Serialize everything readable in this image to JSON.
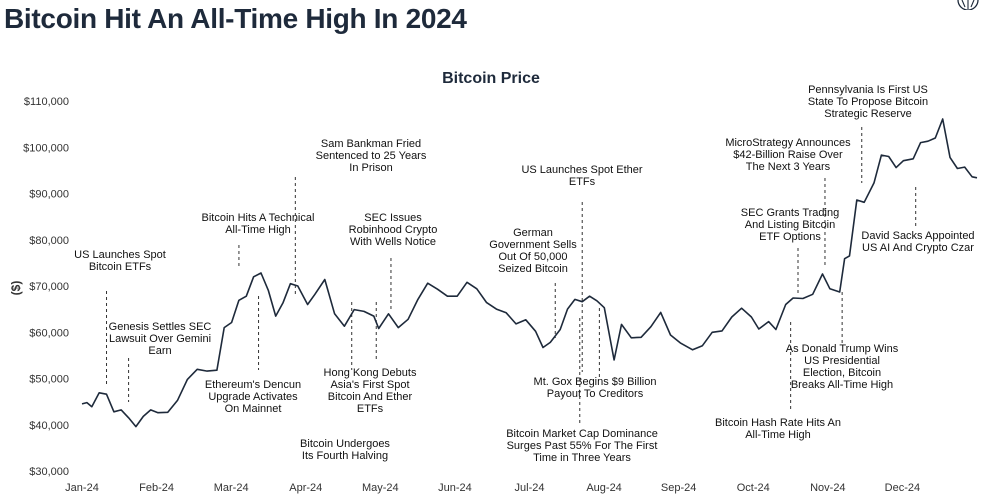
{
  "headline": "Bitcoin Hit An All-Time High In 2024",
  "chart_data": {
    "type": "line",
    "title": "Bitcoin Price",
    "xlabel": "",
    "ylabel": "($)",
    "ylim": [
      30000,
      110000
    ],
    "yticks": [
      30000,
      40000,
      50000,
      60000,
      70000,
      80000,
      90000,
      100000,
      110000
    ],
    "ytick_labels": [
      "$30,000",
      "$40,000",
      "$50,000",
      "$60,000",
      "$70,000",
      "$80,000",
      "$90,000",
      "$100,000",
      "$110,000"
    ],
    "xtick_labels": [
      "Jan-24",
      "Feb-24",
      "Mar-24",
      "Apr-24",
      "May-24",
      "Jun-24",
      "Jul-24",
      "Aug-24",
      "Sep-24",
      "Oct-24",
      "Nov-24",
      "Dec-24"
    ],
    "grid": false,
    "line_color": "#1e2a3b",
    "series": [
      {
        "x": [
          "2024-01-01",
          "2024-01-03",
          "2024-01-05",
          "2024-01-08",
          "2024-01-11",
          "2024-01-14",
          "2024-01-17",
          "2024-01-20",
          "2024-01-23",
          "2024-01-26",
          "2024-01-29",
          "2024-02-01",
          "2024-02-05",
          "2024-02-09",
          "2024-02-13",
          "2024-02-17",
          "2024-02-21",
          "2024-02-25",
          "2024-02-28",
          "2024-03-02",
          "2024-03-05",
          "2024-03-08",
          "2024-03-11",
          "2024-03-14",
          "2024-03-17",
          "2024-03-20",
          "2024-03-23",
          "2024-03-26",
          "2024-03-29",
          "2024-04-02",
          "2024-04-05",
          "2024-04-09",
          "2024-04-13",
          "2024-04-17",
          "2024-04-21",
          "2024-04-25",
          "2024-04-29",
          "2024-05-01",
          "2024-05-05",
          "2024-05-09",
          "2024-05-13",
          "2024-05-17",
          "2024-05-21",
          "2024-05-25",
          "2024-05-29",
          "2024-06-02",
          "2024-06-06",
          "2024-06-10",
          "2024-06-14",
          "2024-06-18",
          "2024-06-22",
          "2024-06-26",
          "2024-06-30",
          "2024-07-04",
          "2024-07-07",
          "2024-07-10",
          "2024-07-14",
          "2024-07-17",
          "2024-07-20",
          "2024-07-23",
          "2024-07-26",
          "2024-07-29",
          "2024-08-01",
          "2024-08-05",
          "2024-08-08",
          "2024-08-12",
          "2024-08-16",
          "2024-08-20",
          "2024-08-24",
          "2024-08-28",
          "2024-09-01",
          "2024-09-06",
          "2024-09-10",
          "2024-09-14",
          "2024-09-18",
          "2024-09-22",
          "2024-09-26",
          "2024-09-30",
          "2024-10-03",
          "2024-10-07",
          "2024-10-10",
          "2024-10-14",
          "2024-10-17",
          "2024-10-21",
          "2024-10-25",
          "2024-10-29",
          "2024-11-01",
          "2024-11-05",
          "2024-11-07",
          "2024-11-09",
          "2024-11-12",
          "2024-11-15",
          "2024-11-19",
          "2024-11-22",
          "2024-11-25",
          "2024-11-28",
          "2024-12-01",
          "2024-12-05",
          "2024-12-08",
          "2024-12-11",
          "2024-12-14",
          "2024-12-17",
          "2024-12-20",
          "2024-12-23",
          "2024-12-26",
          "2024-12-29",
          "2024-12-31"
        ],
        "values": [
          44500,
          44800,
          43900,
          46900,
          46600,
          42800,
          43200,
          41500,
          39600,
          41800,
          43200,
          42600,
          42700,
          45300,
          49800,
          52000,
          51600,
          51800,
          61000,
          62100,
          66900,
          67800,
          72000,
          72800,
          69000,
          63500,
          66400,
          70500,
          70000,
          66000,
          68200,
          71400,
          64000,
          61300,
          64900,
          64500,
          63500,
          60800,
          64000,
          61000,
          62800,
          67100,
          70600,
          69300,
          67800,
          67800,
          70800,
          69400,
          66400,
          65000,
          64200,
          61800,
          62700,
          60200,
          56700,
          57800,
          60600,
          65000,
          67100,
          66600,
          67800,
          66800,
          65300,
          54000,
          61700,
          58800,
          58900,
          61200,
          64300,
          59400,
          57700,
          56200,
          57100,
          60000,
          60300,
          63300,
          65200,
          63300,
          60700,
          62300,
          60600,
          66000,
          67400,
          67300,
          68200,
          72600,
          69400,
          68700,
          75900,
          76500,
          88600,
          88100,
          92300,
          98300,
          98000,
          95600,
          97100,
          97500,
          101000,
          101300,
          102000,
          106100,
          97800,
          95400,
          95700,
          93600,
          93400
        ]
      }
    ],
    "annotations": [
      {
        "text": [
          "US Launches Spot",
          "Bitcoin ETFs"
        ],
        "date": "2024-01-11"
      },
      {
        "text": [
          "Genesis Settles SEC",
          "Lawsuit Over Gemini",
          "Earn"
        ],
        "date": "2024-01-20"
      },
      {
        "text": [
          "Bitcoin Hits A Technical",
          "All-Time High"
        ],
        "date": "2024-03-05"
      },
      {
        "text": [
          "Ethereum's Dencun",
          "Upgrade Activates",
          "On Mainnet"
        ],
        "date": "2024-03-13"
      },
      {
        "text": [
          "Sam Bankman Fried",
          "Sentenced to 25 Years",
          "In Prison"
        ],
        "date": "2024-03-28"
      },
      {
        "text": [
          "SEC Issues",
          "Robinhood Crypto",
          "With Wells Notice"
        ],
        "date": "2024-05-06"
      },
      {
        "text": [
          "Hong Kong Debuts",
          "Asia's First Spot",
          "Bitcoin And Ether",
          "ETFs"
        ],
        "date": "2024-04-30"
      },
      {
        "text": [
          "Bitcoin Undergoes",
          "Its Fourth Halving"
        ],
        "date": "2024-04-20"
      },
      {
        "text": [
          "German",
          "Government Sells",
          "Out Of 50,000",
          "Seized Bitcoin"
        ],
        "date": "2024-07-12"
      },
      {
        "text": [
          "US Launches Spot Ether",
          "ETFs"
        ],
        "date": "2024-07-23"
      },
      {
        "text": [
          "Mt. Gox Begins $9 Billion",
          "Payout To Creditors"
        ],
        "date": "2024-07-30"
      },
      {
        "text": [
          "Bitcoin Market Cap Dominance",
          "Surges Past 55% For The First",
          "Time in Three Years"
        ],
        "date": "2024-07-22"
      },
      {
        "text": [
          "MicroStrategy Announces",
          "$42-Billion Raise Over",
          "The Next 3 Years"
        ],
        "date": "2024-10-30"
      },
      {
        "text": [
          "SEC Grants Trading",
          "And Listing Bitcoin",
          "ETF Options"
        ],
        "date": "2024-10-19"
      },
      {
        "text": [
          "Bitcoin Hash Rate Hits An",
          "All-Time High"
        ],
        "date": "2024-10-16"
      },
      {
        "text": [
          "As Donald Trump Wins",
          "US Presidential",
          "Election, Bitcoin",
          "Breaks All-Time High"
        ],
        "date": "2024-11-06"
      },
      {
        "text": [
          "Pennsylvania Is First US",
          "State To Propose Bitcoin",
          "Strategic Reserve"
        ],
        "date": "2024-11-14"
      },
      {
        "text": [
          "David Sacks Appointed",
          "US AI And Crypto Czar"
        ],
        "date": "2024-12-06"
      }
    ]
  }
}
